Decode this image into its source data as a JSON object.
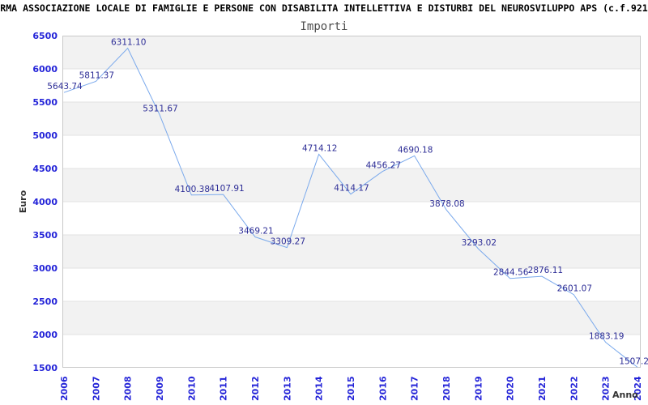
{
  "title": "RMA ASSOCIAZIONE LOCALE DI FAMIGLIE E PERSONE CON DISABILITA INTELLETTIVA E DISTURBI DEL NEUROSVILUPPO APS (c.f.921",
  "subtitle": "Importi",
  "chart_data": {
    "type": "line",
    "title": "Importi",
    "xlabel": "Anno",
    "ylabel": "Euro",
    "categories": [
      "2006",
      "2007",
      "2008",
      "2009",
      "2010",
      "2011",
      "2012",
      "2013",
      "2014",
      "2015",
      "2016",
      "2017",
      "2018",
      "2019",
      "2020",
      "2021",
      "2022",
      "2023",
      "2024"
    ],
    "values": [
      5643.74,
      5811.37,
      6311.1,
      5311.67,
      4100.38,
      4107.91,
      3469.21,
      3309.27,
      4714.12,
      4114.17,
      4456.27,
      4690.18,
      3878.08,
      3293.02,
      2844.56,
      2876.11,
      2601.07,
      1883.19,
      1507.2
    ],
    "point_labels": [
      "5643.74",
      "5811.37",
      "6311.10",
      "5311.67",
      "4100.38",
      "4107.91",
      "3469.21",
      "3309.27",
      "4714.12",
      "4114.17",
      "4456.27",
      "4690.18",
      "3878.08",
      "3293.02",
      "2844.56",
      "2876.11",
      "2601.07",
      "1883.19",
      "1507.2"
    ],
    "ylim": [
      1500,
      6500
    ],
    "ytick_step": 500,
    "yticks": [
      "6500",
      "6000",
      "5500",
      "5000",
      "4500",
      "4000",
      "3500",
      "3000",
      "2500",
      "2000",
      "1500"
    ],
    "grid": true,
    "legend": false,
    "colors": {
      "line": "#7aa9ec",
      "point_label": "#2d2d96",
      "tick_label": "#2424d8",
      "band": "#f2f2f2",
      "gridline": "#e2e2e2",
      "plot_border": "#c9c9c9",
      "subtitle": "#4d4d4d",
      "axis_title": "#333333"
    }
  }
}
